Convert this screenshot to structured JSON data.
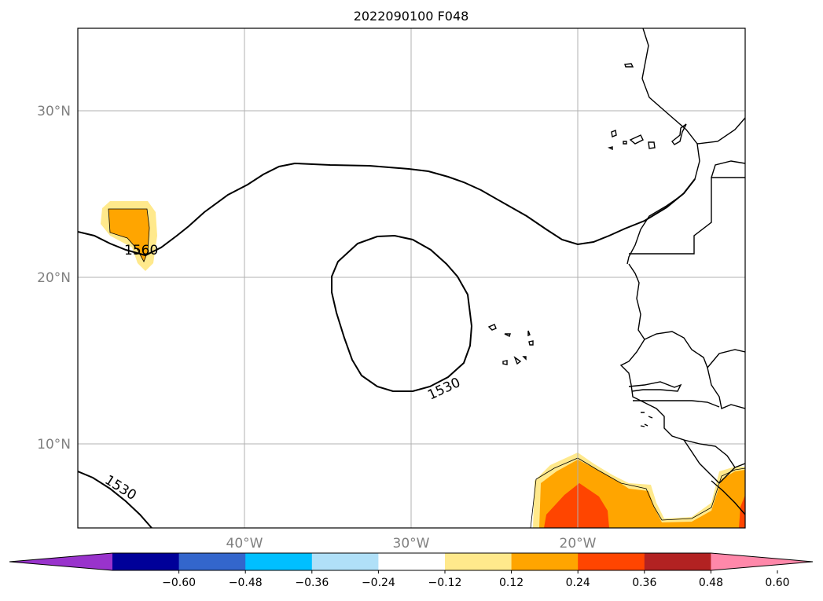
{
  "title": "2022090100 F048",
  "lat_labels": [
    "30°N",
    "20°N",
    "10°N"
  ],
  "lon_labels": [
    "40°W",
    "30°W",
    "20°W"
  ],
  "contour_labels": [
    "1560",
    "1530",
    "1530"
  ],
  "colorbar": {
    "colors": [
      "#9933cc",
      "#000099",
      "#3366cc",
      "#00bfff",
      "#b0e0f8",
      "#ffffff",
      "#ffe98c",
      "#ffa500",
      "#ff4500",
      "#b22222",
      "#ff88aa"
    ],
    "ticks": [
      "-0.60",
      "-0.48",
      "-0.36",
      "-0.24",
      "-0.12",
      "0.12",
      "0.24",
      "0.36",
      "0.48",
      "0.60"
    ]
  },
  "fill_colors": {
    "light": "#ffe98c",
    "mid": "#ffa500",
    "dark": "#ff4500"
  }
}
